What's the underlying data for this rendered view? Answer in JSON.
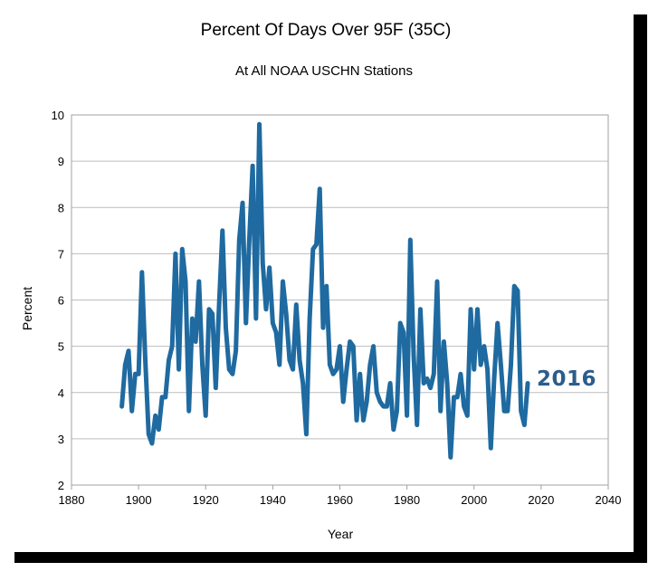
{
  "chart_data": {
    "type": "line",
    "title": "Percent Of Days Over 95F (35C)",
    "subtitle": "At All NOAA USCHN Stations",
    "xlabel": "Year",
    "ylabel": "Percent",
    "xlim": [
      1880,
      2040
    ],
    "ylim": [
      2,
      10
    ],
    "x_ticks": [
      "1880",
      "1900",
      "1920",
      "1940",
      "1960",
      "1980",
      "2000",
      "2020",
      "2040"
    ],
    "y_ticks": [
      "2",
      "3",
      "4",
      "5",
      "6",
      "7",
      "8",
      "9",
      "10"
    ],
    "grid": "horizontal",
    "legend": "none",
    "annotation": "2016",
    "line_color": "#1f6aa0",
    "series": [
      {
        "x": [
          1895,
          1896,
          1897,
          1898,
          1899,
          1900,
          1901,
          1902,
          1903,
          1904,
          1905,
          1906,
          1907,
          1908,
          1909,
          1910,
          1911,
          1912,
          1913,
          1914,
          1915,
          1916,
          1917,
          1918,
          1919,
          1920,
          1921,
          1922,
          1923,
          1924,
          1925,
          1926,
          1927,
          1928,
          1929,
          1930,
          1931,
          1932,
          1933,
          1934,
          1935,
          1936,
          1937,
          1938,
          1939,
          1940,
          1941,
          1942,
          1943,
          1944,
          1945,
          1946,
          1947,
          1948,
          1949,
          1950,
          1951,
          1952,
          1953,
          1954,
          1955,
          1956,
          1957,
          1958,
          1959,
          1960,
          1961,
          1962,
          1963,
          1964,
          1965,
          1966,
          1967,
          1968,
          1969,
          1970,
          1971,
          1972,
          1973,
          1974,
          1975,
          1976,
          1977,
          1978,
          1979,
          1980,
          1981,
          1982,
          1983,
          1984,
          1985,
          1986,
          1987,
          1988,
          1989,
          1990,
          1991,
          1992,
          1993,
          1994,
          1995,
          1996,
          1997,
          1998,
          1999,
          2000,
          2001,
          2002,
          2003,
          2004,
          2005,
          2006,
          2007,
          2008,
          2009,
          2010,
          2011,
          2012,
          2013,
          2014,
          2015,
          2016
        ],
        "values": [
          3.7,
          4.6,
          4.9,
          3.6,
          4.4,
          4.4,
          6.6,
          4.7,
          3.1,
          2.9,
          3.5,
          3.2,
          3.9,
          3.9,
          4.7,
          5.0,
          7.0,
          4.5,
          7.1,
          6.4,
          3.6,
          5.6,
          5.1,
          6.4,
          4.6,
          3.5,
          5.8,
          5.7,
          4.1,
          5.9,
          7.5,
          5.4,
          4.5,
          4.4,
          4.9,
          7.3,
          8.1,
          5.5,
          7.3,
          8.9,
          5.6,
          9.8,
          6.8,
          5.8,
          6.7,
          5.5,
          5.3,
          4.6,
          6.4,
          5.7,
          4.7,
          4.5,
          5.9,
          4.7,
          4.2,
          3.1,
          5.6,
          7.1,
          7.2,
          8.4,
          5.4,
          6.3,
          4.6,
          4.4,
          4.5,
          5.0,
          3.8,
          4.5,
          5.1,
          5.0,
          3.4,
          4.4,
          3.4,
          3.8,
          4.6,
          5.0,
          4.0,
          3.8,
          3.7,
          3.7,
          4.2,
          3.2,
          3.6,
          5.5,
          5.3,
          3.5,
          7.3,
          4.8,
          3.3,
          5.8,
          4.2,
          4.3,
          4.1,
          4.4,
          6.4,
          3.6,
          5.1,
          4.2,
          2.6,
          3.9,
          3.9,
          4.4,
          3.7,
          3.5,
          5.8,
          4.5,
          5.8,
          4.6,
          5.0,
          4.5,
          2.8,
          4.3,
          5.5,
          4.6,
          3.6,
          3.6,
          4.6,
          6.3,
          6.2,
          3.6,
          3.3,
          4.2
        ]
      }
    ]
  }
}
